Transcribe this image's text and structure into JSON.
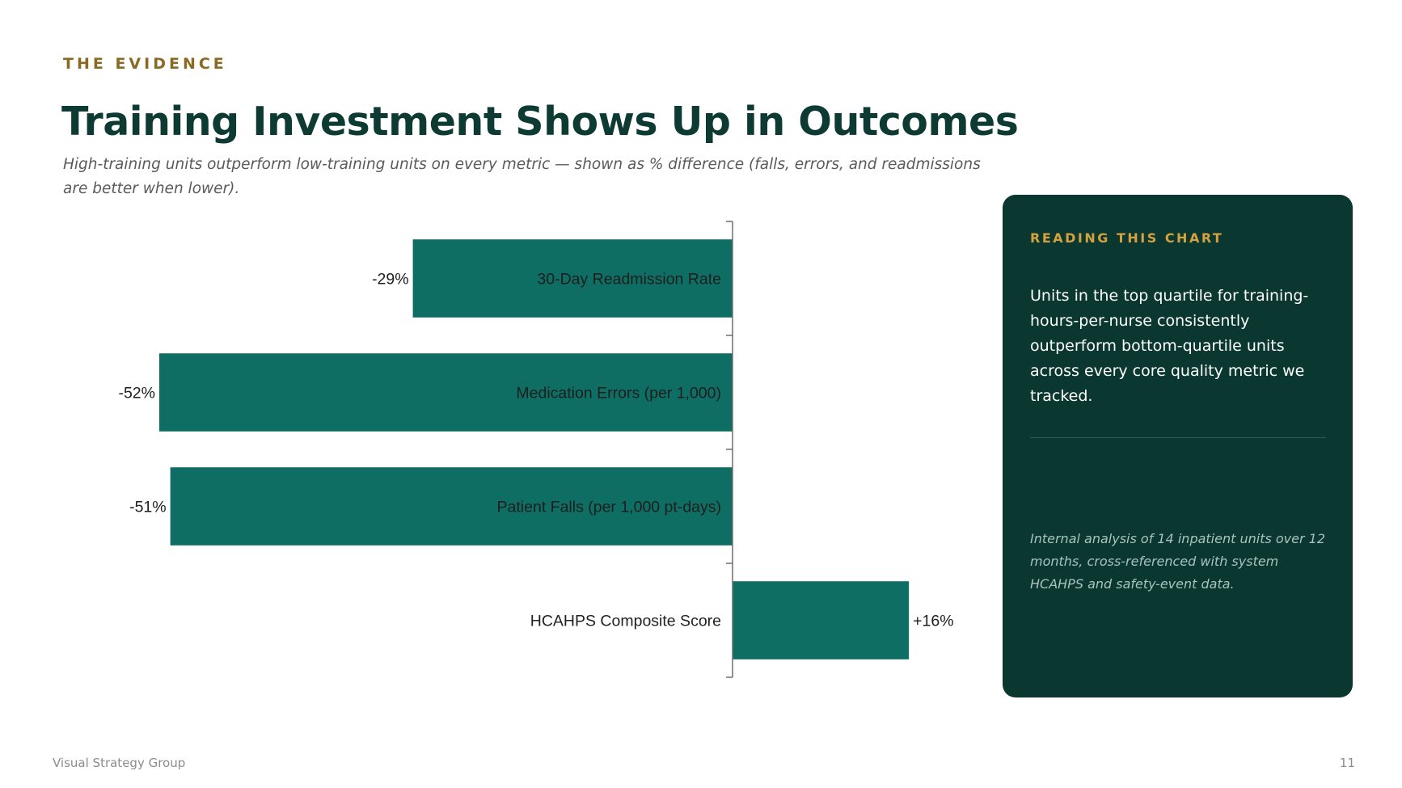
{
  "header": {
    "eyebrow": "THE EVIDENCE",
    "title": "Training Investment Shows Up in Outcomes",
    "subtitle": "High-training units outperform low-training units on every metric — shown as % difference (falls, errors, and readmissions are better when lower)."
  },
  "chart_data": {
    "type": "bar",
    "orientation": "horizontal",
    "categories": [
      "30-Day Readmission Rate",
      "Medication Errors (per 1,000)",
      "Patient Falls (per 1,000 pt-days)",
      "HCAHPS Composite Score"
    ],
    "values": [
      -29,
      -52,
      -51,
      16
    ],
    "value_labels": [
      "-29%",
      "-52%",
      "-51%",
      "+16%"
    ],
    "unit": "%",
    "xlim": [
      -52,
      16
    ],
    "grid": false,
    "legend": "none",
    "bar_color": "#0e6e64"
  },
  "panel": {
    "eyebrow": "READING THIS CHART",
    "body": "Units in the top quartile for training-hours-per-nurse consistently outperform bottom-quartile units across every core quality metric we tracked.",
    "note": "Internal analysis of 14 inpatient units over 12 months, cross-referenced with system HCAHPS and safety-event data."
  },
  "footer": {
    "left": "Visual Strategy Group",
    "page_number": "11"
  },
  "colors": {
    "accent_dark": "#0d3b33",
    "eyebrow_gold": "#8a6a22",
    "panel_bg": "#0a3730",
    "panel_gold": "#d4a23f",
    "bar": "#0e6e64"
  }
}
